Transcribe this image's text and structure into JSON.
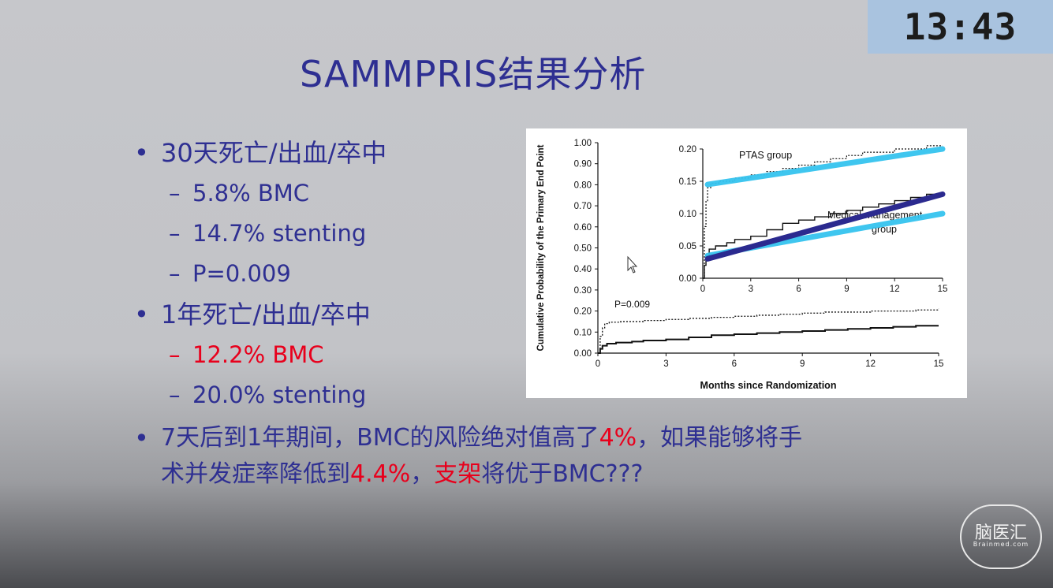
{
  "timer": "13:43",
  "title": "SAMMPRIS结果分析",
  "bullets": [
    {
      "text": "30天死亡/出血/卒中",
      "subs": [
        {
          "text": "5.8% BMC",
          "red": false
        },
        {
          "text": "14.7% stenting",
          "red": false
        },
        {
          "text": "P=0.009",
          "red": false
        }
      ]
    },
    {
      "text": "1年死亡/出血/卒中",
      "subs": [
        {
          "text": "12.2% BMC",
          "red": true
        },
        {
          "text": "20.0% stenting",
          "red": false
        }
      ]
    }
  ],
  "bullet3": {
    "part1": "7天后到1年期间，BMC的风险绝对值高了",
    "red1": "4%",
    "part2": "，如果能够将手术并发症率降低到",
    "red2": "4.4%",
    "part3": "，",
    "red3": "支架",
    "part4": "将优于BMC???"
  },
  "logo": {
    "main": "脑医汇",
    "sub": "Brainmed.com"
  },
  "colors": {
    "text": "#2e2f92",
    "red": "#e8001c",
    "cyan": "#35c3ef",
    "navy": "#2b2a8f"
  },
  "chart_data": [
    {
      "type": "line",
      "xlabel": "Months since Randomization",
      "ylabel": "Cumulative Probability of the Primary End Point",
      "xlim": [
        0,
        15
      ],
      "ylim": [
        0,
        1.0
      ],
      "xticks": [
        0,
        3,
        6,
        9,
        12,
        15
      ],
      "yticks": [
        "0.00",
        "0.10",
        "0.20",
        "0.30",
        "0.40",
        "0.50",
        "0.60",
        "0.70",
        "0.80",
        "0.90",
        "1.00"
      ],
      "annotation": "P=0.009",
      "series": [
        {
          "style": "dotted",
          "x": [
            0,
            0.1,
            0.2,
            0.3,
            0.5,
            1,
            2,
            3,
            4,
            5,
            6,
            7,
            8,
            9,
            10,
            11,
            12,
            13,
            14,
            15
          ],
          "y": [
            0,
            0.08,
            0.12,
            0.14,
            0.147,
            0.15,
            0.155,
            0.16,
            0.165,
            0.17,
            0.175,
            0.18,
            0.185,
            0.19,
            0.195,
            0.195,
            0.2,
            0.2,
            0.205,
            0.21
          ]
        },
        {
          "style": "solid",
          "x": [
            0,
            0.1,
            0.2,
            0.4,
            0.8,
            1.5,
            2,
            3,
            4,
            5,
            6,
            7,
            8,
            9,
            10,
            11,
            12,
            13,
            14,
            15
          ],
          "y": [
            0,
            0.02,
            0.035,
            0.045,
            0.05,
            0.055,
            0.06,
            0.065,
            0.075,
            0.085,
            0.09,
            0.095,
            0.1,
            0.105,
            0.11,
            0.115,
            0.12,
            0.125,
            0.13,
            0.13
          ]
        }
      ]
    },
    {
      "type": "line",
      "xlim": [
        0,
        15
      ],
      "ylim": [
        0,
        0.2
      ],
      "xticks": [
        0,
        3,
        6,
        9,
        12,
        15
      ],
      "yticks": [
        "0.00",
        "0.05",
        "0.10",
        "0.15",
        "0.20"
      ],
      "labels": [
        "PTAS group",
        "Medical-management group"
      ],
      "series": [
        {
          "style": "dotted",
          "x": [
            0,
            0.1,
            0.2,
            0.3,
            0.5,
            1,
            2,
            3,
            4,
            5,
            6,
            7,
            8,
            9,
            10,
            11,
            12,
            13,
            14,
            15
          ],
          "y": [
            0,
            0.08,
            0.12,
            0.14,
            0.147,
            0.15,
            0.155,
            0.16,
            0.165,
            0.17,
            0.175,
            0.18,
            0.185,
            0.19,
            0.195,
            0.195,
            0.2,
            0.2,
            0.205,
            0.21
          ]
        },
        {
          "style": "solid",
          "x": [
            0,
            0.1,
            0.2,
            0.4,
            0.8,
            1.5,
            2,
            3,
            4,
            5,
            6,
            7,
            8,
            9,
            10,
            11,
            12,
            13,
            14,
            15
          ],
          "y": [
            0,
            0.02,
            0.035,
            0.045,
            0.05,
            0.055,
            0.06,
            0.065,
            0.075,
            0.085,
            0.09,
            0.095,
            0.1,
            0.105,
            0.11,
            0.115,
            0.12,
            0.125,
            0.13,
            0.13
          ]
        }
      ],
      "trend_lines": [
        {
          "color": "cyan",
          "from": [
            0.3,
            0.145
          ],
          "to": [
            15,
            0.2
          ]
        },
        {
          "color": "cyan",
          "from": [
            0.3,
            0.035
          ],
          "to": [
            15,
            0.1
          ]
        },
        {
          "color": "navy",
          "from": [
            0.3,
            0.03
          ],
          "to": [
            15,
            0.13
          ]
        }
      ]
    }
  ]
}
